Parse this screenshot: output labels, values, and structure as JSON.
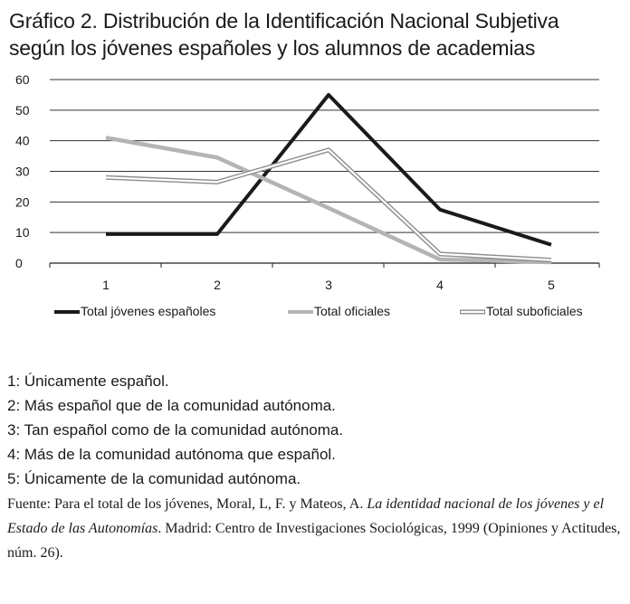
{
  "title_line1": "Gráfico 2. Distribución de la Identificación Nacional Subjetiva",
  "title_line2": "según los jóvenes españoles y los alumnos de academias",
  "chart_data": {
    "type": "line",
    "x": [
      "1",
      "2",
      "3",
      "4",
      "5"
    ],
    "ylim": [
      0,
      60
    ],
    "yticks": [
      "0",
      "10",
      "20",
      "30",
      "40",
      "50",
      "60"
    ],
    "grid": true,
    "legend_position": "bottom",
    "series": [
      {
        "name": "Total jóvenes españoles",
        "values": [
          9.5,
          9.5,
          55,
          17.5,
          6
        ],
        "color": "#1a1a1a",
        "style": "solid"
      },
      {
        "name": "Total oficiales",
        "values": [
          41,
          34.5,
          18,
          1.2,
          0.3
        ],
        "color": "#b4b4b4",
        "style": "solid"
      },
      {
        "name": "Total suboficiales",
        "values": [
          28,
          26.5,
          37,
          3,
          1
        ],
        "color": "#8c8c8c",
        "style": "double"
      }
    ]
  },
  "notes": [
    "1: Únicamente español.",
    "2: Más español que de la comunidad autónoma.",
    "3: Tan español como de la comunidad autónoma.",
    "4: Más de la comunidad autónoma que español.",
    "5: Únicamente de la comunidad autónoma."
  ],
  "source": {
    "prefix": "Fuente: Para el total de los jóvenes, Moral, L, F. y Mateos, A. ",
    "italic": "La identidad nacional de los jóvenes y el Estado de las Autonomías",
    "suffix": ". Madrid: Centro de Investigaciones Sociológicas, 1999 (Opiniones y Actitudes, núm. 26)."
  }
}
